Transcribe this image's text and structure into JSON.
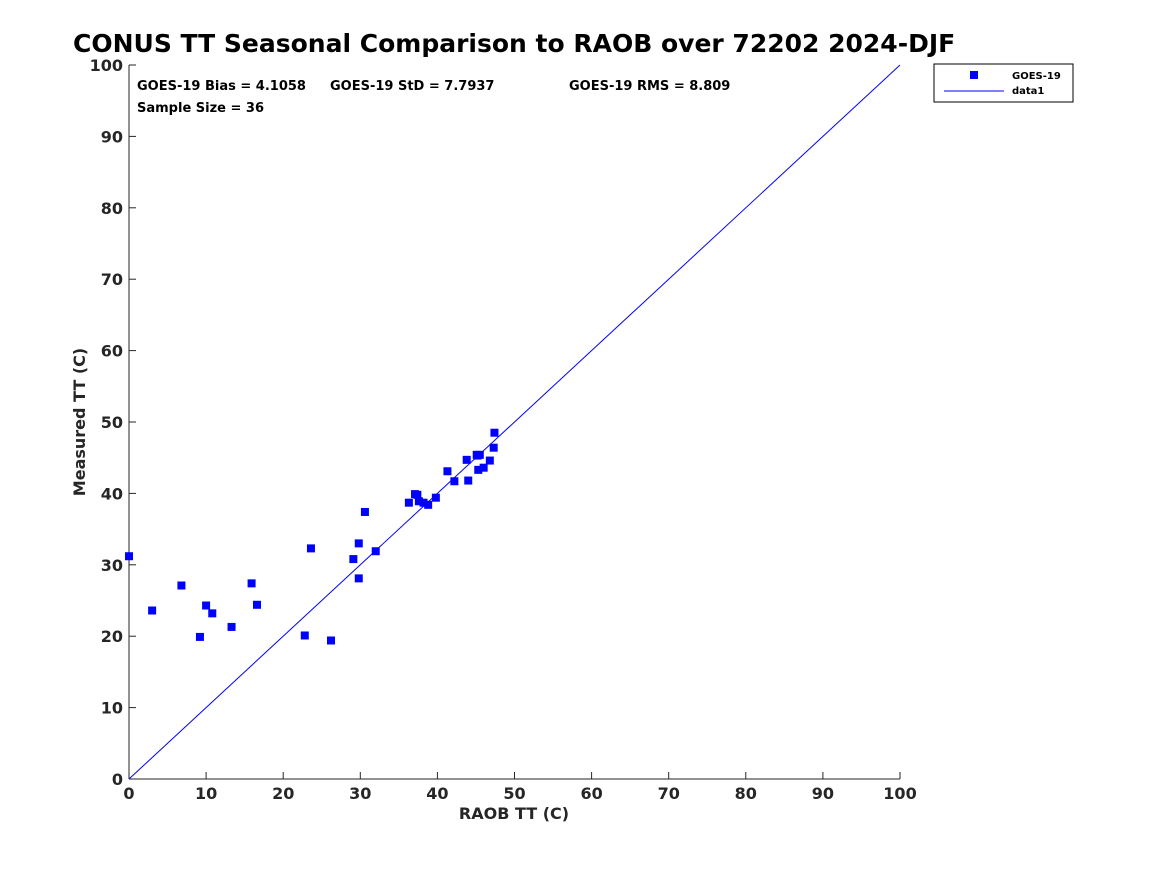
{
  "chart_data": {
    "type": "scatter",
    "title": "CONUS TT Seasonal Comparison to RAOB over 72202 2024-DJF",
    "xlabel": "RAOB TT (C)",
    "ylabel": "Measured TT (C)",
    "xlim": [
      0,
      100
    ],
    "ylim": [
      0,
      100
    ],
    "xticks": [
      0,
      10,
      20,
      30,
      40,
      50,
      60,
      70,
      80,
      90,
      100
    ],
    "yticks": [
      0,
      10,
      20,
      30,
      40,
      50,
      60,
      70,
      80,
      90,
      100
    ],
    "grid": false,
    "legend_position": "top-right",
    "stats": {
      "bias": "GOES-19 Bias = 4.1058",
      "std": "GOES-19 StD = 7.7937",
      "rms": "GOES-19 RMS = 8.809",
      "sample_size": "Sample Size = 36"
    },
    "series": [
      {
        "name": "GOES-19",
        "kind": "scatter",
        "marker": "square",
        "color": "#0000ff",
        "points": [
          [
            0.0,
            31.2
          ],
          [
            3.0,
            23.6
          ],
          [
            6.8,
            27.1
          ],
          [
            9.2,
            19.9
          ],
          [
            10.0,
            24.3
          ],
          [
            10.8,
            23.2
          ],
          [
            13.3,
            21.3
          ],
          [
            15.9,
            27.4
          ],
          [
            16.6,
            24.4
          ],
          [
            22.8,
            20.1
          ],
          [
            23.6,
            32.3
          ],
          [
            26.2,
            19.4
          ],
          [
            29.1,
            30.8
          ],
          [
            29.8,
            28.1
          ],
          [
            29.8,
            33.0
          ],
          [
            30.6,
            37.4
          ],
          [
            32.0,
            31.9
          ],
          [
            36.3,
            38.7
          ],
          [
            37.1,
            39.9
          ],
          [
            37.4,
            39.8
          ],
          [
            37.6,
            38.9
          ],
          [
            38.2,
            38.7
          ],
          [
            38.8,
            38.4
          ],
          [
            39.8,
            39.4
          ],
          [
            41.3,
            43.1
          ],
          [
            42.2,
            41.7
          ],
          [
            43.8,
            44.7
          ],
          [
            44.0,
            41.8
          ],
          [
            45.1,
            45.4
          ],
          [
            45.3,
            43.3
          ],
          [
            45.5,
            45.4
          ],
          [
            46.0,
            43.6
          ],
          [
            46.8,
            44.6
          ],
          [
            47.3,
            46.4
          ],
          [
            47.4,
            48.5
          ],
          [
            45.2,
            45.3
          ]
        ]
      },
      {
        "name": "data1",
        "kind": "line",
        "color": "#0000ff",
        "points": [
          [
            0,
            0
          ],
          [
            100,
            100
          ]
        ]
      }
    ]
  }
}
